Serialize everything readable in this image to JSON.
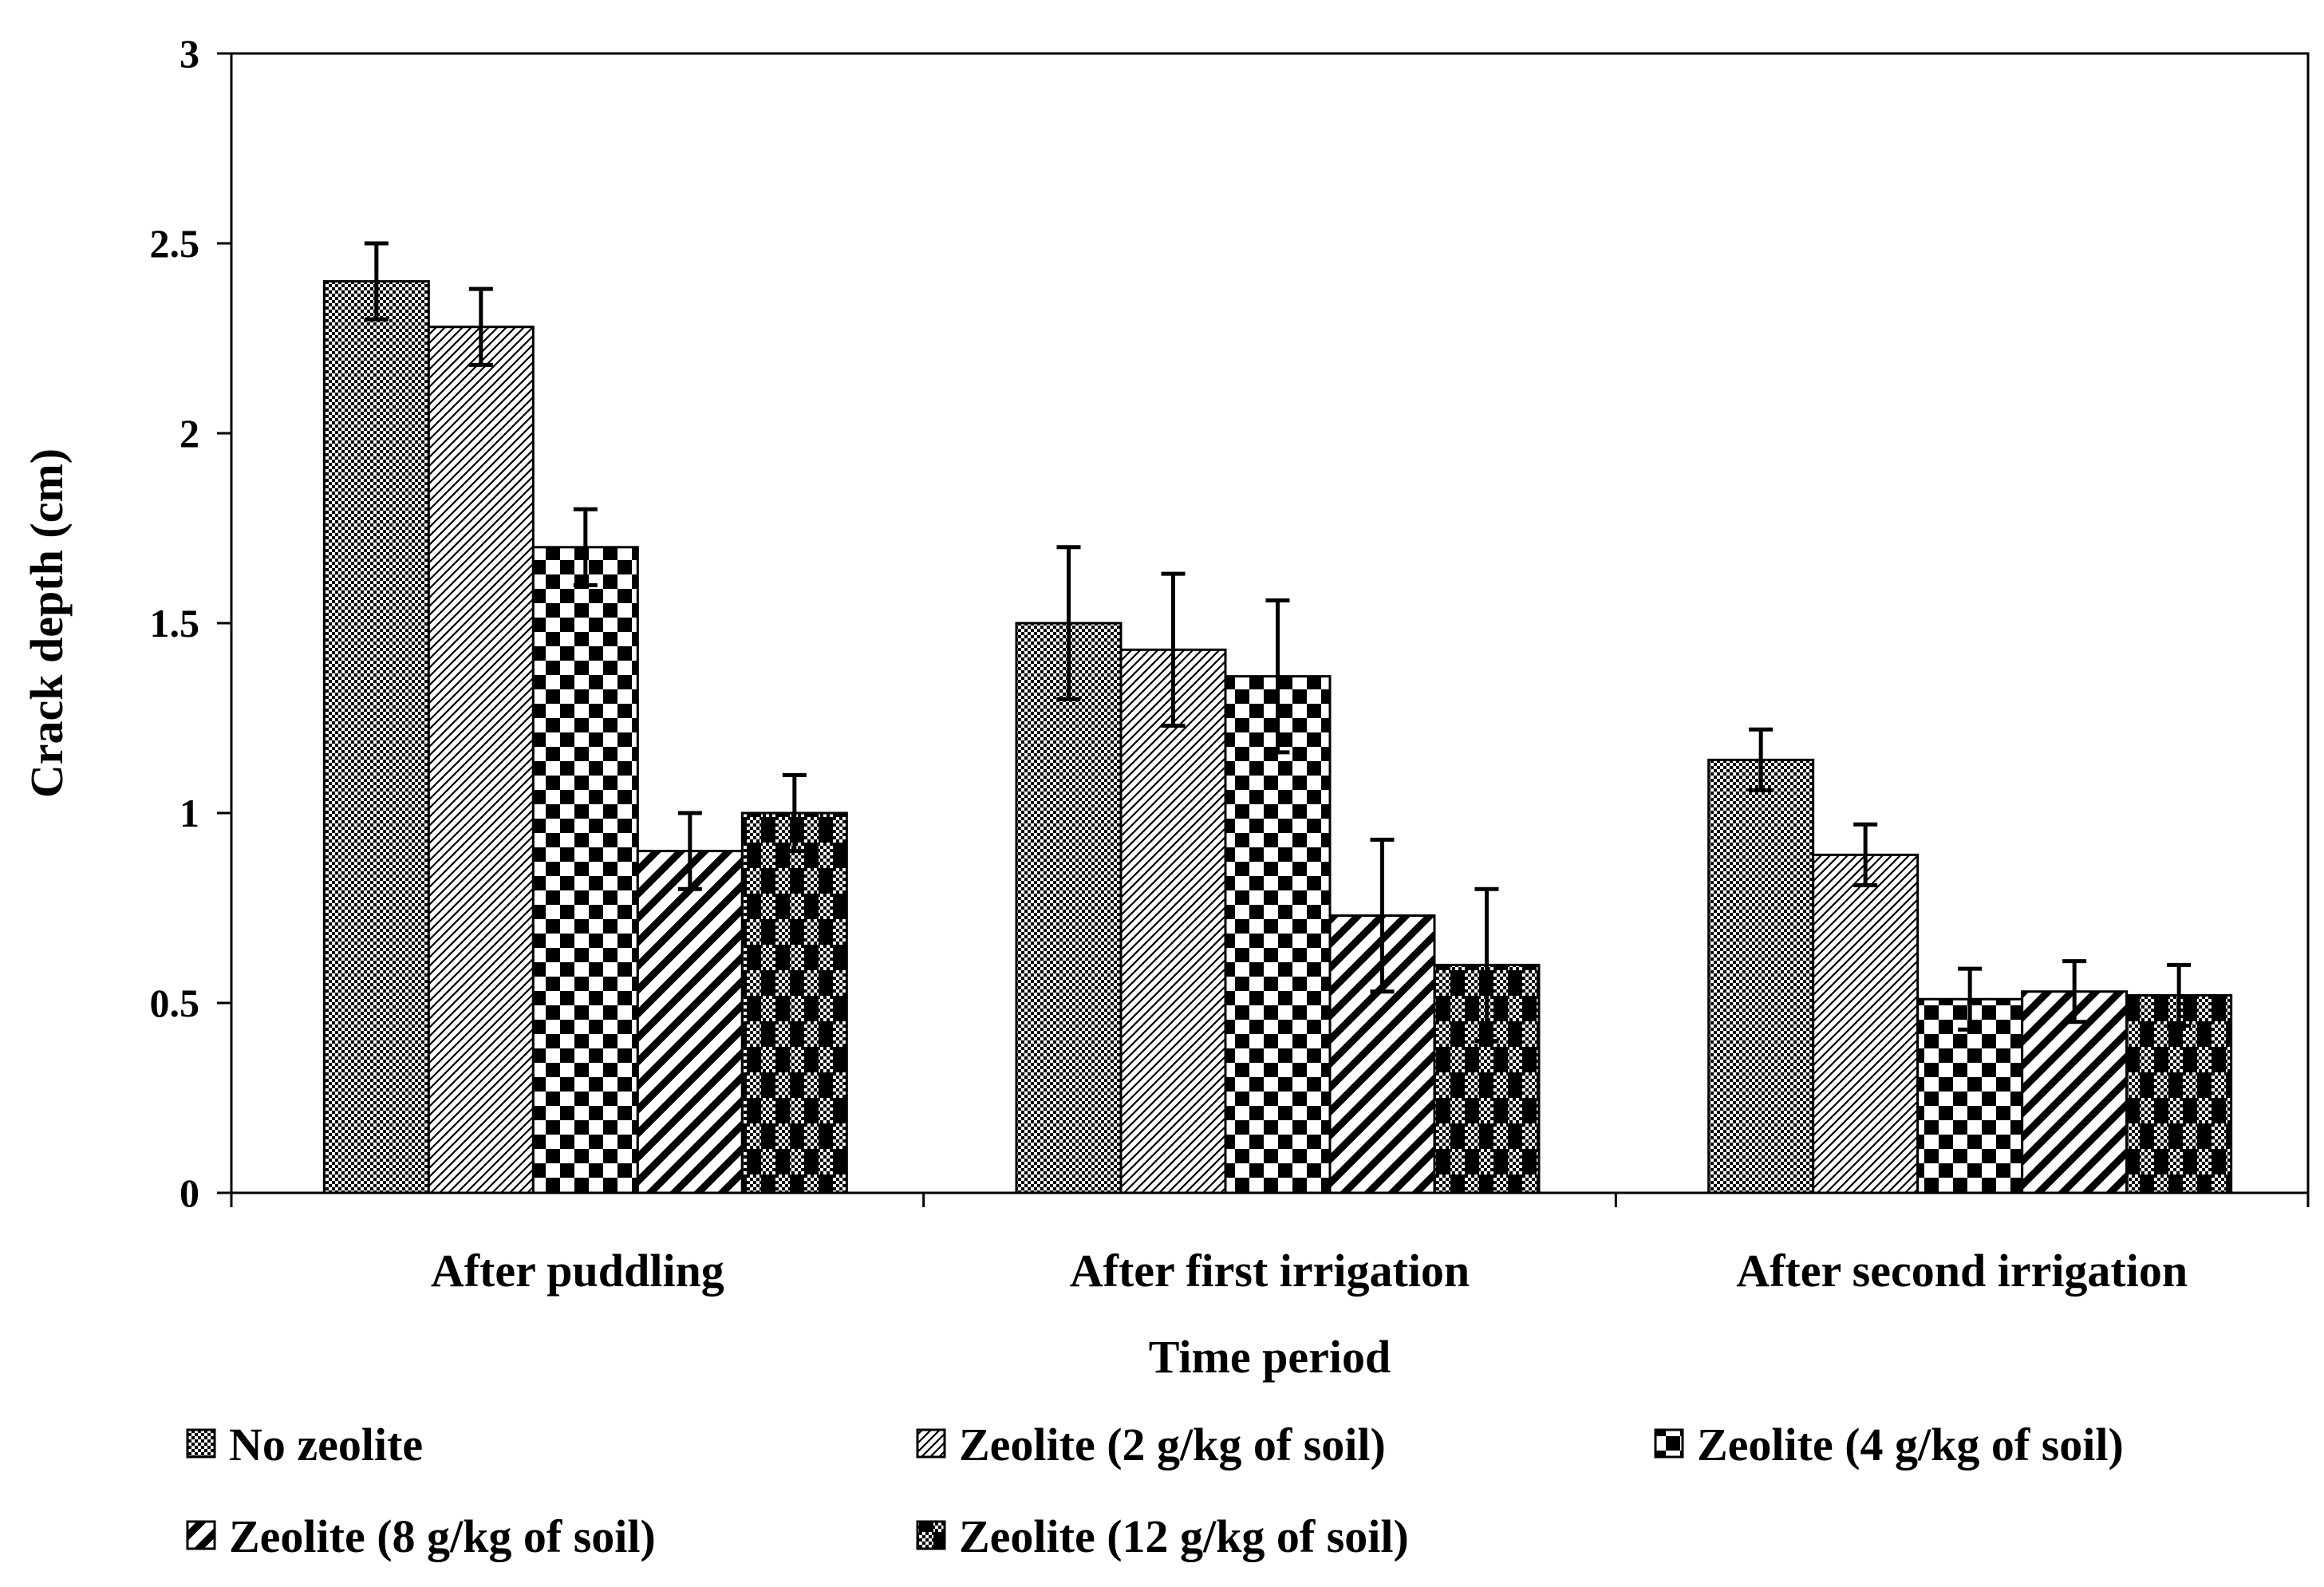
{
  "chart_data": {
    "type": "bar",
    "title": "",
    "xlabel": "Time period",
    "ylabel": "Crack depth (cm)",
    "ylim": [
      0,
      3
    ],
    "yticks": [
      "0",
      "0.5",
      "1",
      "1.5",
      "2",
      "2.5",
      "3"
    ],
    "grid": false,
    "legend_position": "bottom",
    "categories": [
      "After puddling",
      "After first irrigation",
      "After second irrigation"
    ],
    "series": [
      {
        "name": "No zeolite",
        "values": [
          2.4,
          1.5,
          1.14
        ],
        "errors": [
          0.1,
          0.2,
          0.08
        ]
      },
      {
        "name": "Zeolite (2 g/kg of soil)",
        "values": [
          2.28,
          1.43,
          0.89
        ],
        "errors": [
          0.1,
          0.2,
          0.08
        ]
      },
      {
        "name": "Zeolite (4 g/kg of soil)",
        "values": [
          1.7,
          1.36,
          0.51
        ],
        "errors": [
          0.1,
          0.2,
          0.08
        ]
      },
      {
        "name": "Zeolite (8 g/kg of soil)",
        "values": [
          0.9,
          0.73,
          0.53
        ],
        "errors": [
          0.1,
          0.2,
          0.08
        ]
      },
      {
        "name": "Zeolite (12 g/kg of soil)",
        "values": [
          1.0,
          0.6,
          0.52
        ],
        "errors": [
          0.1,
          0.2,
          0.08
        ]
      }
    ]
  }
}
